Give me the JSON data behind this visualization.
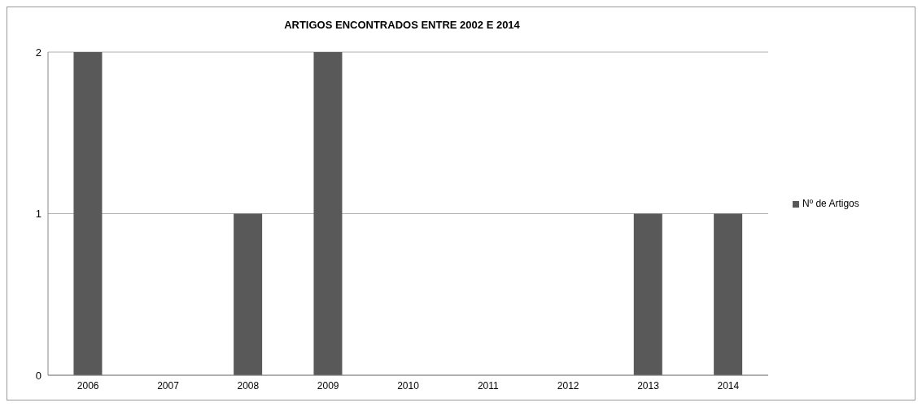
{
  "chart_data": {
    "type": "bar",
    "title": "ARTIGOS ENCONTRADOS ENTRE 2002 E 2014",
    "categories": [
      "2006",
      "2007",
      "2008",
      "2009",
      "2010",
      "2011",
      "2012",
      "2013",
      "2014"
    ],
    "series": [
      {
        "name": "Nº de Artigos",
        "color": "#595959",
        "values": [
          2,
          0,
          1,
          2,
          0,
          0,
          0,
          1,
          1
        ]
      }
    ],
    "ylim": [
      0,
      2
    ],
    "yticks": [
      0,
      1,
      2
    ],
    "grid": "y",
    "legend": "right"
  }
}
